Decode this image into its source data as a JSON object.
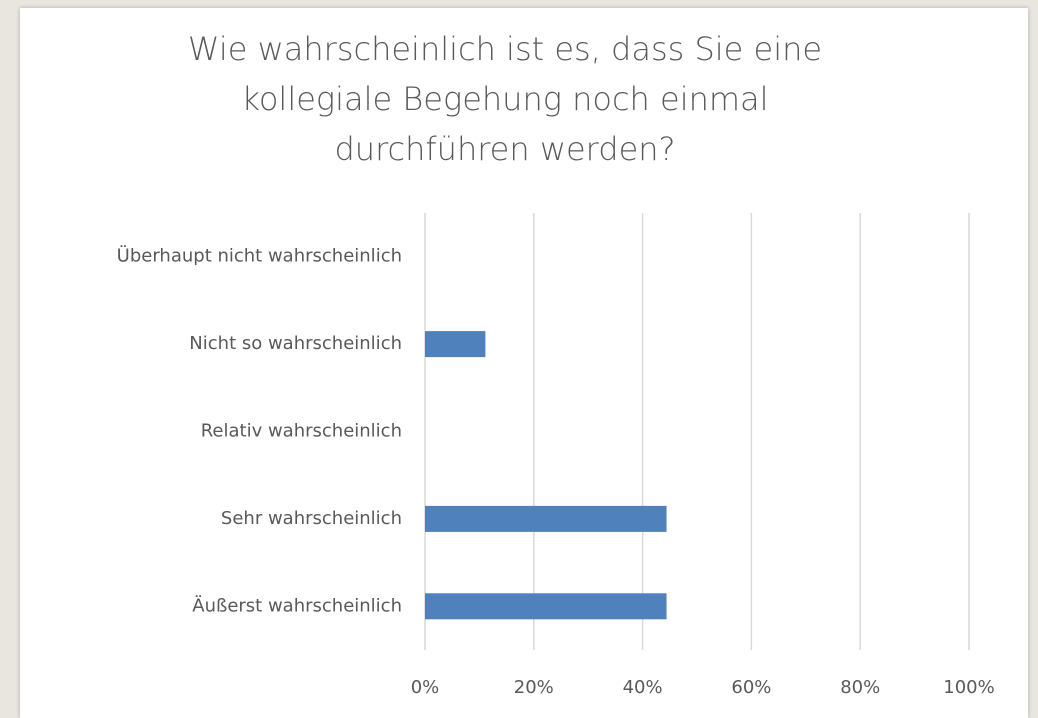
{
  "chart_data": {
    "type": "bar",
    "orientation": "horizontal",
    "title": "Wie wahrscheinlich ist es, dass Sie eine kollegiale Begehung noch einmal durchführen werden?",
    "categories": [
      "Überhaupt nicht wahrscheinlich",
      "Nicht so wahrscheinlich",
      "Relativ wahrscheinlich",
      "Sehr wahrscheinlich",
      "Äußerst wahrscheinlich"
    ],
    "values": [
      0,
      11.1,
      0,
      44.4,
      44.4
    ],
    "color": "#4f81bd",
    "xlim": [
      0,
      100
    ],
    "xticks": [
      {
        "value": 0,
        "label": "0%"
      },
      {
        "value": 20,
        "label": "20%"
      },
      {
        "value": 40,
        "label": "40%"
      },
      {
        "value": 60,
        "label": "60%"
      },
      {
        "value": 80,
        "label": "80%"
      },
      {
        "value": 100,
        "label": "100%"
      }
    ],
    "grid": true
  }
}
